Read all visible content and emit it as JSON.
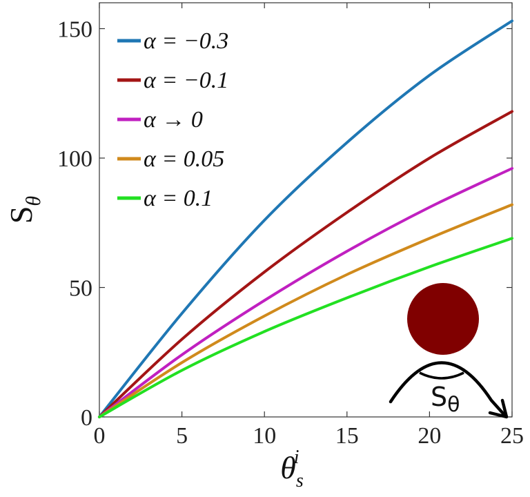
{
  "chart_data": {
    "type": "line",
    "xlabel": "θ",
    "xlabel_sub": "s",
    "xlabel_sup": "i",
    "ylabel": "S",
    "ylabel_sub": "θ",
    "xlim": [
      0,
      25
    ],
    "ylim": [
      0,
      160
    ],
    "xticks": [
      "0",
      "5",
      "10",
      "15",
      "20",
      "25"
    ],
    "yticks": [
      "0",
      "50",
      "100",
      "150"
    ],
    "grid": false,
    "legend_position": "top-left",
    "series": [
      {
        "name": "α = −0.3",
        "color": "#1f77b4",
        "x": [
          0,
          5,
          10,
          15,
          20,
          25
        ],
        "values": [
          0,
          40,
          76,
          106,
          132,
          153
        ]
      },
      {
        "name": "α = −0.1",
        "color": "#a31515",
        "x": [
          0,
          5,
          10,
          15,
          20,
          25
        ],
        "values": [
          0,
          30,
          56,
          79,
          100,
          118
        ]
      },
      {
        "name": "α → 0",
        "color": "#c020c0",
        "x": [
          0,
          5,
          10,
          15,
          20,
          25
        ],
        "values": [
          0,
          24,
          45,
          64,
          81,
          96
        ]
      },
      {
        "name": "α = 0.05",
        "color": "#d08a1c",
        "x": [
          0,
          5,
          10,
          15,
          20,
          25
        ],
        "values": [
          0,
          21,
          39,
          55,
          69,
          82
        ]
      },
      {
        "name": "α = 0.1",
        "color": "#22e022",
        "x": [
          0,
          5,
          10,
          15,
          20,
          25
        ],
        "values": [
          0,
          18,
          33,
          46,
          58,
          69
        ]
      }
    ],
    "inset": {
      "label": "S",
      "label_sub": "θ",
      "ball_color": "#800000"
    }
  }
}
